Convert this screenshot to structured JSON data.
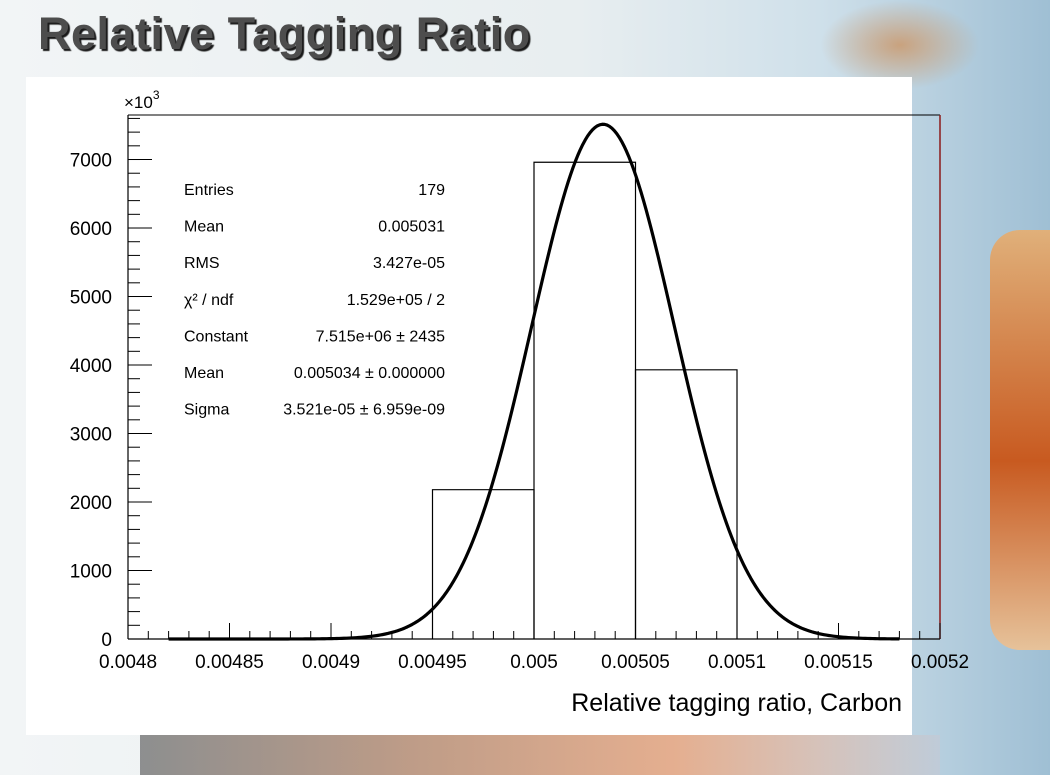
{
  "slide": {
    "title": "Relative Tagging Ratio"
  },
  "chart_data": {
    "type": "histogram",
    "xlabel": "Relative tagging ratio, Carbon",
    "ylabel": "",
    "y_multiplier_label": "×10",
    "y_multiplier_exponent": "3",
    "xlim": [
      0.0048,
      0.0052
    ],
    "ylim": [
      0,
      7650
    ],
    "x_ticks": [
      0.0048,
      0.00485,
      0.0049,
      0.00495,
      0.005,
      0.00505,
      0.0051,
      0.00515,
      0.0052
    ],
    "x_tick_labels": [
      "0.0048",
      "0.00485",
      "0.0049",
      "0.00495",
      "0.005",
      "0.00505",
      "0.0051",
      "0.00515",
      "0.0052"
    ],
    "y_ticks": [
      0,
      1000,
      2000,
      3000,
      4000,
      5000,
      6000,
      7000
    ],
    "y_tick_labels": [
      "0",
      "1000",
      "2000",
      "3000",
      "4000",
      "5000",
      "6000",
      "7000"
    ],
    "histogram": {
      "bin_edges": [
        0.0048,
        0.00485,
        0.0049,
        0.00495,
        0.005,
        0.00505,
        0.0051,
        0.00515,
        0.0052
      ],
      "counts": [
        0,
        0,
        0,
        2180,
        6960,
        3930,
        0,
        0
      ]
    },
    "gaussian_fit": {
      "constant": 7515,
      "mean": 0.005034,
      "sigma": 3.521e-05,
      "x_range": [
        0.00482,
        0.00518
      ]
    },
    "stats_box": [
      {
        "label": "Entries",
        "value": "179"
      },
      {
        "label": "Mean",
        "value": "0.005031"
      },
      {
        "label": "RMS",
        "value": "3.427e-05"
      },
      {
        "label": "χ² / ndf",
        "value": "1.529e+05 / 2"
      },
      {
        "label": "Constant",
        "value": "7.515e+06 ± 2435"
      },
      {
        "label": "Mean",
        "value": "0.005034 ± 0.000000"
      },
      {
        "label": "Sigma",
        "value": "3.521e-05 ± 6.959e-09"
      }
    ],
    "grid": false,
    "legend": "stats box, top-left inside plot"
  }
}
